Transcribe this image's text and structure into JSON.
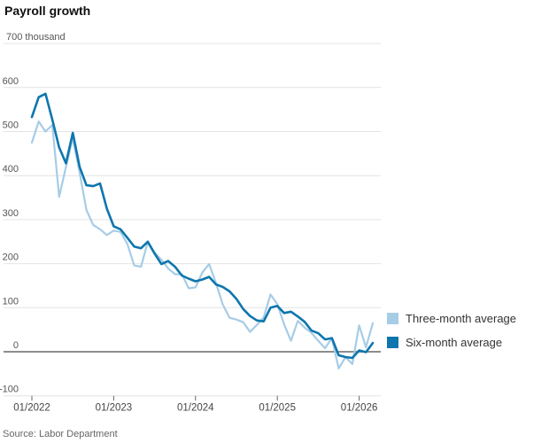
{
  "chart_data": {
    "type": "line",
    "title": "Payroll growth",
    "source": "Source: Labor Department",
    "unit": "thousand",
    "ylim": [
      -100,
      700
    ],
    "grid": "horizontal",
    "legend_position": "right-middle",
    "x_start_month": "2022-01",
    "n_points": 51,
    "colors": {
      "gridline": "#e4e4e4",
      "zero_line": "#8d8d8d",
      "axis_text": "#555555",
      "x_axis_text": "#444444",
      "tick_mark": "#666666"
    },
    "y_axis": {
      "ticks": [
        {
          "value": 700,
          "label": "700 thousand",
          "align": "left"
        },
        {
          "value": 600,
          "label": "600"
        },
        {
          "value": 500,
          "label": "500"
        },
        {
          "value": 400,
          "label": "400"
        },
        {
          "value": 300,
          "label": "300"
        },
        {
          "value": 200,
          "label": "200"
        },
        {
          "value": 100,
          "label": "100"
        },
        {
          "value": 0,
          "label": "0"
        },
        {
          "value": -100,
          "label": "-100"
        }
      ]
    },
    "x_axis": {
      "ticks": [
        {
          "month_index": 0,
          "label": "01/2022"
        },
        {
          "month_index": 12,
          "label": "01/2023"
        },
        {
          "month_index": 24,
          "label": "01/2024"
        },
        {
          "month_index": 36,
          "label": "01/2025"
        },
        {
          "month_index": 48,
          "label": "01/2026"
        }
      ]
    },
    "series": [
      {
        "name": "Three-month average",
        "color": "#a7cce6",
        "values": [
          475,
          523,
          500,
          515,
          352,
          420,
          485,
          407,
          322,
          288,
          278,
          265,
          275,
          272,
          245,
          196,
          193,
          249,
          225,
          209,
          189,
          176,
          176,
          144,
          146,
          180,
          199,
          156,
          107,
          77,
          73,
          67,
          45,
          61,
          78,
          130,
          108,
          62,
          25,
          70,
          55,
          43,
          25,
          8,
          31,
          -38,
          -12,
          -28,
          60,
          10,
          65
        ]
      },
      {
        "name": "Six-month average",
        "color": "#0e76ad",
        "values": [
          533,
          578,
          586,
          527,
          464,
          428,
          497,
          420,
          378,
          376,
          382,
          325,
          285,
          278,
          259,
          239,
          235,
          250,
          223,
          199,
          206,
          193,
          173,
          166,
          160,
          164,
          170,
          153,
          147,
          137,
          120,
          97,
          81,
          71,
          69,
          100,
          104,
          88,
          91,
          80,
          68,
          48,
          42,
          28,
          31,
          -8,
          -12,
          -14,
          3,
          -1,
          20
        ]
      }
    ]
  }
}
